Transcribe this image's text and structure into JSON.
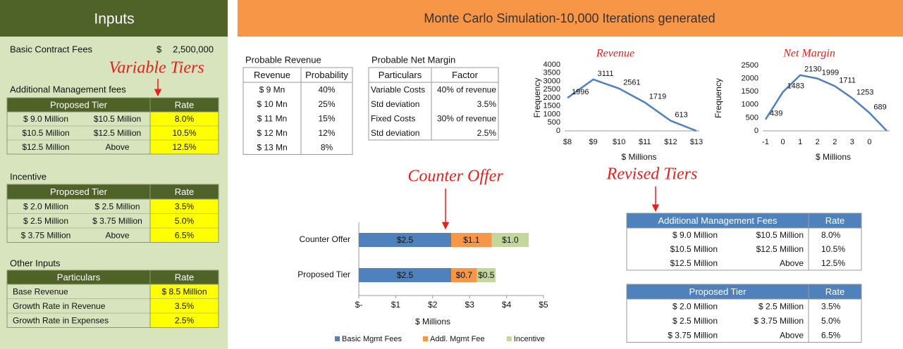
{
  "inputs": {
    "title": "Inputs",
    "basic_contract": {
      "label": "Basic Contract Fees",
      "currency": "$",
      "amount": "2,500,000"
    },
    "variable_tiers_note": "Variable Tiers",
    "additional_fees": {
      "title": "Additional Management fees",
      "header": [
        "Proposed Tier",
        "Rate"
      ],
      "rows": [
        [
          "$ 9.0 Million",
          "$10.5 Million",
          "8.0%"
        ],
        [
          "$10.5 Million",
          "$12.5 Million",
          "10.5%"
        ],
        [
          "$12.5 Million",
          "Above",
          "12.5%"
        ]
      ]
    },
    "incentive": {
      "title": "Incentive",
      "header": [
        "Proposed Tier",
        "Rate"
      ],
      "rows": [
        [
          "$ 2.0 Million",
          "$ 2.5 Million",
          "3.5%"
        ],
        [
          "$ 2.5 Million",
          "$ 3.75 Million",
          "5.0%"
        ],
        [
          "$ 3.75 Million",
          "Above",
          "6.5%"
        ]
      ]
    },
    "other_inputs": {
      "title": "Other Inputs",
      "header": [
        "Particulars",
        "Rate"
      ],
      "rows": [
        [
          "Base Revenue",
          "$ 8.5 Million"
        ],
        [
          "Growth Rate in Revenue",
          "3.5%"
        ],
        [
          "Growth Rate in Expenses",
          "2.5%"
        ]
      ]
    }
  },
  "simulation": {
    "title": "Monte Carlo Simulation-10,000 Iterations generated",
    "probable_revenue": {
      "title": "Probable Revenue",
      "header": [
        "Revenue",
        "Probability"
      ],
      "rows": [
        [
          "$ 9 Mn",
          "40%"
        ],
        [
          "$ 10 Mn",
          "25%"
        ],
        [
          "$ 11 Mn",
          "15%"
        ],
        [
          "$ 12 Mn",
          "12%"
        ],
        [
          "$ 13 Mn",
          "8%"
        ]
      ]
    },
    "probable_net_margin": {
      "title": "Probable Net Margin",
      "header": [
        "Particulars",
        "Factor"
      ],
      "rows": [
        [
          "Variable Costs",
          "40% of revenue"
        ],
        [
          "Std deviation",
          "3.5%"
        ],
        [
          "Fixed Costs",
          "30% of revenue"
        ],
        [
          "Std deviation",
          "2.5%"
        ]
      ]
    },
    "counter_offer_note": "Counter Offer",
    "revised_tiers_note": "Revised Tiers",
    "revised_fees": {
      "header": [
        "Additional Management Fees",
        "Rate"
      ],
      "rows": [
        [
          "$ 9.0 Million",
          "$10.5 Million",
          "8.0%"
        ],
        [
          "$10.5 Million",
          "$12.5 Million",
          "10.5%"
        ],
        [
          "$12.5 Million",
          "Above",
          "12.5%"
        ]
      ]
    },
    "revised_incentive": {
      "header": [
        "Proposed Tier",
        "Rate"
      ],
      "rows": [
        [
          "$ 2.0 Million",
          "$ 2.5 Million",
          "3.5%"
        ],
        [
          "$ 2.5 Million",
          "$ 3.75 Million",
          "5.0%"
        ],
        [
          "$ 3.75 Million",
          "Above",
          "6.5%"
        ]
      ]
    }
  },
  "chart_data": [
    {
      "type": "line",
      "title": "Revenue",
      "x_label": "$ Millions",
      "y_label": "Frequency",
      "categories": [
        "$8",
        "$9",
        "$10",
        "$11",
        "$12",
        "$13"
      ],
      "values": [
        1996,
        3111,
        2561,
        1719,
        613,
        0
      ],
      "value_labels": [
        "1996",
        "3111",
        "2561",
        "1719",
        "613",
        null
      ],
      "color": "#4f81bd",
      "ylim": [
        0,
        4000
      ],
      "yticks": [
        0,
        500,
        1000,
        1500,
        2000,
        2500,
        3000,
        3500,
        4000
      ]
    },
    {
      "type": "line",
      "title": "Net Margin",
      "x_label": "$ Millions",
      "y_label": "Frequency",
      "categories": [
        "-1",
        "0",
        "1",
        "2",
        "2",
        "3",
        "0",
        null
      ],
      "values": [
        439,
        1483,
        2130,
        1999,
        1711,
        1253,
        689,
        0
      ],
      "value_labels": [
        "439",
        "1483",
        "2130",
        "1999",
        "1711",
        "1253",
        "689",
        null
      ],
      "color": "#4f81bd",
      "ylim": [
        0,
        2500
      ],
      "yticks": [
        0,
        500,
        1000,
        1500,
        2000,
        2500
      ]
    },
    {
      "type": "bar",
      "orientation": "horizontal",
      "stacked": true,
      "x_label": "$ Millions",
      "categories": [
        "Counter Offer",
        "Proposed Tier"
      ],
      "series": [
        {
          "name": "Basic Mgmt Fees",
          "color": "#4f81bd",
          "values": [
            2.5,
            2.5
          ],
          "value_labels": [
            "$2.5",
            "$2.5"
          ]
        },
        {
          "name": "Addl. Mgmt Fee",
          "color": "#f79646",
          "values": [
            1.1,
            0.7
          ],
          "value_labels": [
            "$1.1",
            "$0.7"
          ]
        },
        {
          "name": "Incentive",
          "color": "#c3d69b",
          "values": [
            1.0,
            0.5
          ],
          "value_labels": [
            "$1.0",
            "$0.5"
          ]
        }
      ],
      "xlim": [
        0,
        5
      ],
      "xticks": [
        {
          "value": 0,
          "label": "$-"
        },
        {
          "value": 1,
          "label": "$1"
        },
        {
          "value": 2,
          "label": "$2"
        },
        {
          "value": 3,
          "label": "$3"
        },
        {
          "value": 4,
          "label": "$4"
        },
        {
          "value": 5,
          "label": "$5"
        }
      ],
      "legend": "bottom"
    }
  ]
}
